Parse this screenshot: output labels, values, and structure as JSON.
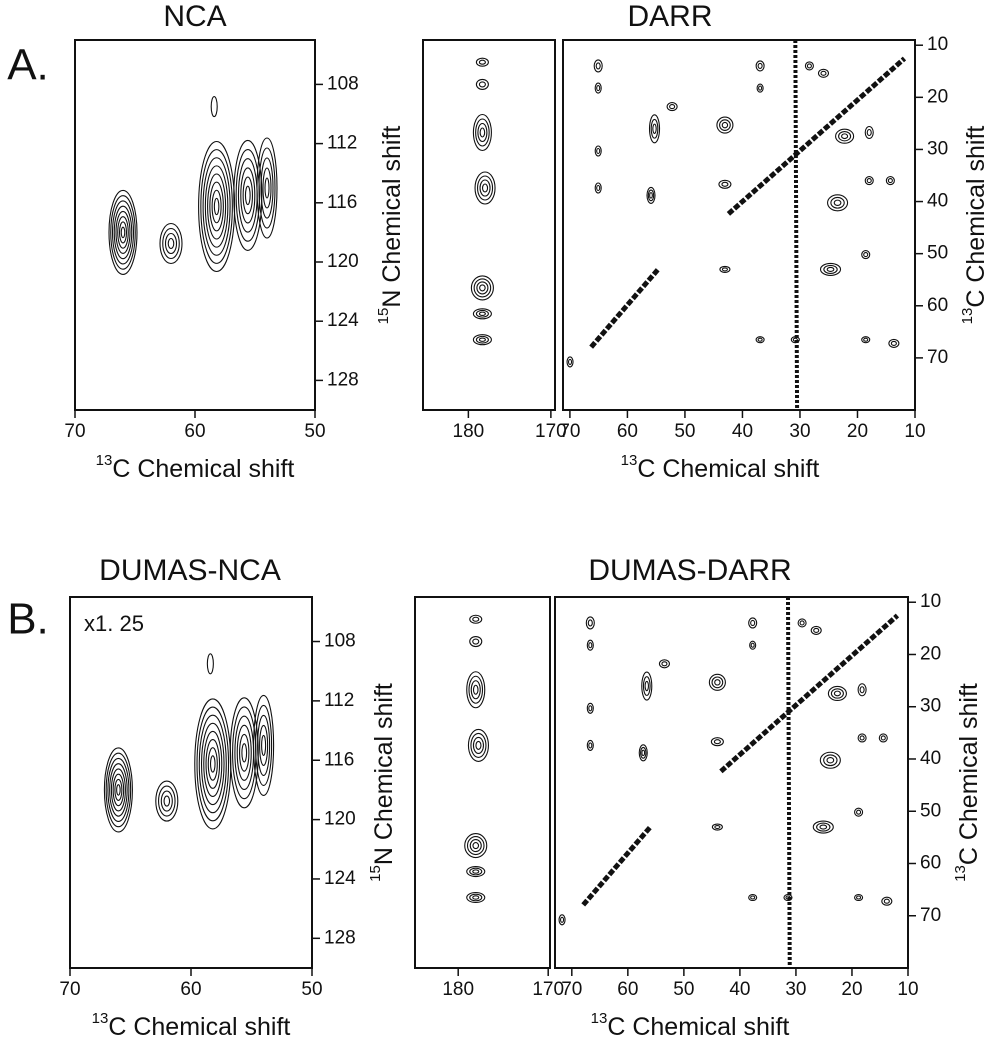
{
  "panels": [
    {
      "row_label": "A.",
      "nca": {
        "title": "NCA",
        "xlim": [
          70,
          50
        ],
        "xticks": [
          70,
          60,
          50
        ],
        "ylim": [
          105,
          130
        ],
        "yticks": [
          108,
          112,
          116,
          120,
          124,
          128
        ],
        "xlabel_sup": "13",
        "xlabel": "C Chemical shift"
      },
      "darr": {
        "title": "DARR",
        "strip_xlim": [
          185.5,
          169.5
        ],
        "strip_xticks": [
          180,
          170
        ],
        "xlim": [
          71.2,
          10
        ],
        "xticks": [
          70,
          60,
          50,
          40,
          30,
          20,
          10
        ],
        "ylim": [
          9,
          80
        ],
        "yticks": [
          10,
          20,
          30,
          40,
          50,
          60,
          70
        ],
        "xlabel_sup": "13",
        "xlabel": "C Chemical shift",
        "left_label_sup": "15",
        "left_label": "N Chemical shift",
        "right_label_sup": "13",
        "right_label": "C Chemical shift"
      }
    },
    {
      "row_label": "B.",
      "nca": {
        "title": "DUMAS-NCA",
        "annotation": "x1. 25",
        "xlim": [
          70,
          50
        ],
        "xticks": [
          70,
          60,
          50
        ],
        "ylim": [
          105,
          130
        ],
        "yticks": [
          108,
          112,
          116,
          120,
          124,
          128
        ],
        "xlabel_sup": "13",
        "xlabel": "C Chemical shift"
      },
      "darr": {
        "title": "DUMAS-DARR",
        "strip_xlim": [
          184.8,
          169.8
        ],
        "strip_xticks": [
          180,
          170
        ],
        "xlim": [
          73,
          10
        ],
        "xticks": [
          70,
          60,
          50,
          40,
          30,
          20,
          10
        ],
        "ylim": [
          9,
          80
        ],
        "yticks": [
          10,
          20,
          30,
          40,
          50,
          60,
          70
        ],
        "xlabel_sup": "13",
        "xlabel": "C Chemical shift",
        "left_label_sup": "15",
        "left_label": "N Chemical shift",
        "right_label_sup": "13",
        "right_label": "C Chemical shift"
      }
    }
  ]
}
